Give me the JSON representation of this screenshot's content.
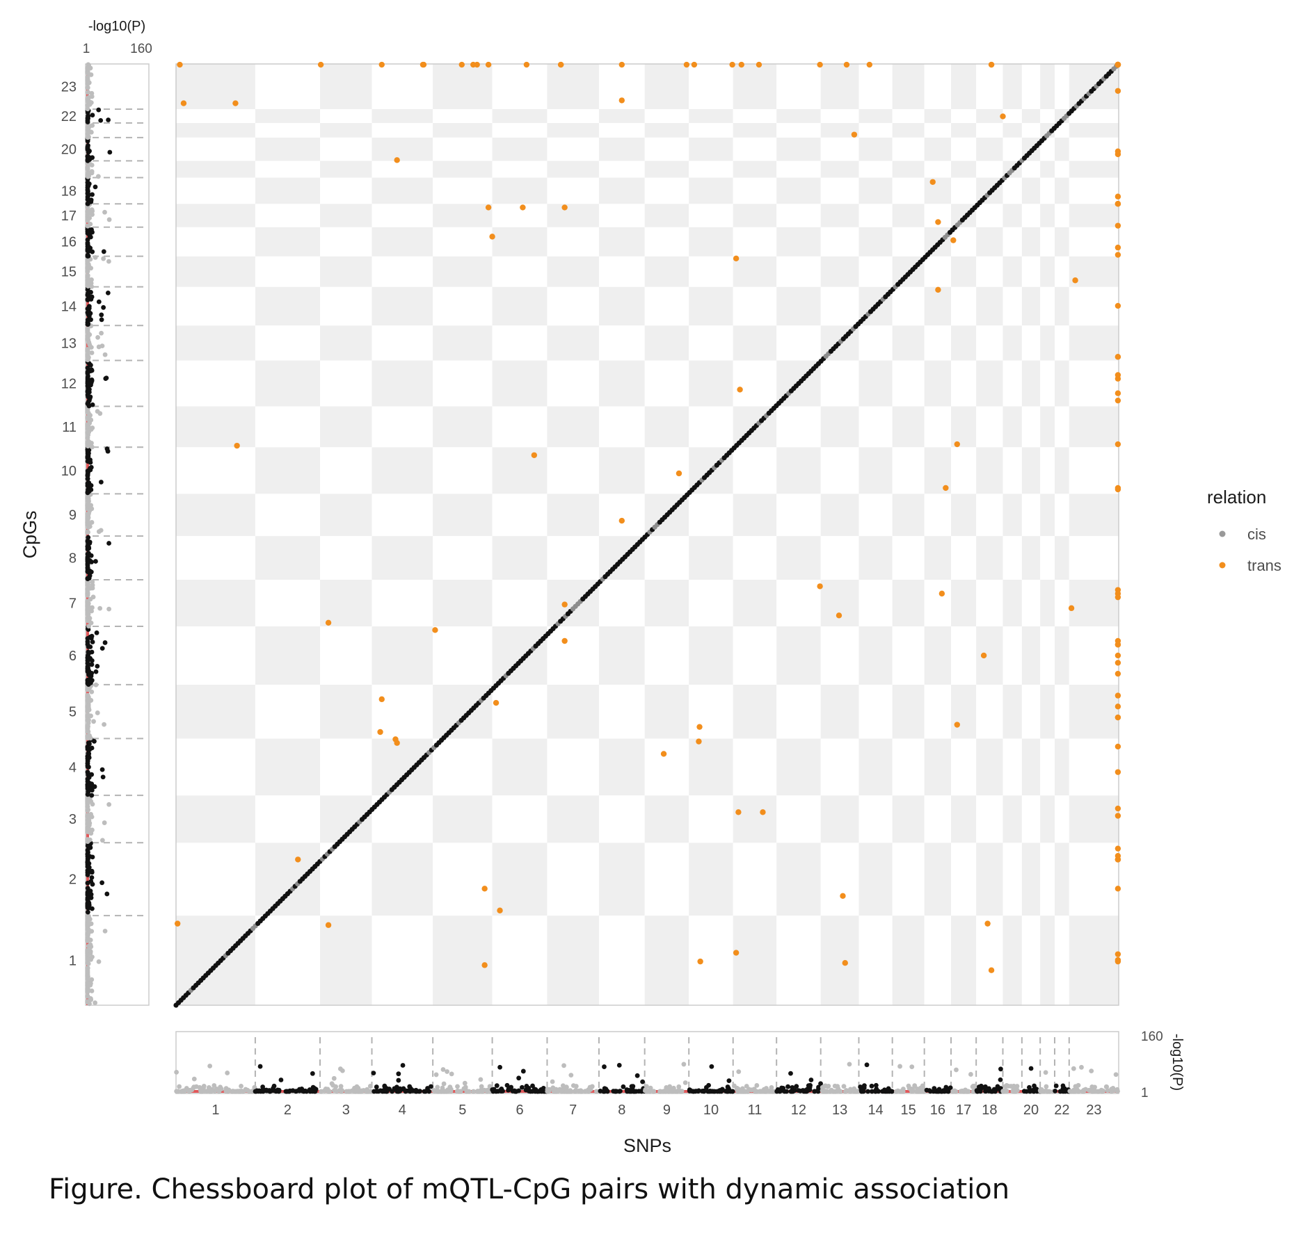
{
  "caption": "Figure. Chessboard plot of mQTL-CpG pairs with dynamic association",
  "chart_data": {
    "type": "scatter",
    "xlabel": "SNPs",
    "ylabel": "CpGs",
    "chromosomes": [
      "1",
      "2",
      "3",
      "4",
      "5",
      "6",
      "7",
      "8",
      "9",
      "10",
      "11",
      "12",
      "13",
      "14",
      "15",
      "16",
      "17",
      "18",
      "19",
      "20",
      "21",
      "22",
      "23"
    ],
    "x_tick_labels": [
      "1",
      "2",
      "3",
      "4",
      "5",
      "6",
      "7",
      "8",
      "9",
      "10",
      "11",
      "12",
      "13",
      "14",
      "15",
      "16",
      "17",
      "18",
      "20",
      "22",
      "23"
    ],
    "y_tick_labels": [
      "1",
      "2",
      "3",
      "4",
      "5",
      "6",
      "7",
      "8",
      "9",
      "10",
      "11",
      "12",
      "13",
      "14",
      "15",
      "16",
      "17",
      "18",
      "20",
      "22",
      "23"
    ],
    "snp_chrom_span": [
      1.04,
      0.85,
      0.68,
      0.8,
      0.78,
      0.72,
      0.68,
      0.6,
      0.58,
      0.58,
      0.57,
      0.58,
      0.5,
      0.44,
      0.42,
      0.35,
      0.33,
      0.35,
      0.25,
      0.24,
      0.19,
      0.19,
      0.65
    ],
    "cpg_chrom_span": [
      1.23,
      1.0,
      0.65,
      0.78,
      0.74,
      0.8,
      0.64,
      0.6,
      0.58,
      0.64,
      0.56,
      0.63,
      0.48,
      0.53,
      0.42,
      0.4,
      0.32,
      0.36,
      0.23,
      0.32,
      0.2,
      0.19,
      0.62
    ],
    "legend": {
      "title": "relation",
      "position": "right",
      "items": [
        {
          "label": "cis",
          "color": "#999999"
        },
        {
          "label": "trans",
          "color": "#f28e1c"
        }
      ]
    },
    "marginal_axis_label": "-log10(P)",
    "marginal_range": [
      1,
      160
    ],
    "marginal_ticks": [
      "1",
      "160"
    ],
    "significance_color": "#e15759",
    "checker_colors": [
      "#efefef",
      "#ffffff"
    ],
    "trans_pairs": [
      [
        0.05,
        19.95
      ],
      [
        0.02,
        1.12
      ],
      [
        0.1,
        12.38
      ],
      [
        0.78,
        12.38
      ],
      [
        0.8,
        7.68
      ],
      [
        1.6,
        2.0
      ],
      [
        1.9,
        16.65
      ],
      [
        2.0,
        5.25
      ],
      [
        2.0,
        1.1
      ],
      [
        2.7,
        16.55
      ],
      [
        2.7,
        4.2
      ],
      [
        2.68,
        3.75
      ],
      [
        2.9,
        11.6
      ],
      [
        2.88,
        3.65
      ],
      [
        2.9,
        3.6
      ],
      [
        3.25,
        19.65
      ],
      [
        3.24,
        19.5
      ],
      [
        3.4,
        5.15
      ],
      [
        3.75,
        17.65
      ],
      [
        3.9,
        18.55
      ],
      [
        3.95,
        18.6
      ],
      [
        4.1,
        15.05
      ],
      [
        4.15,
        10.55
      ],
      [
        4.2,
        4.15
      ],
      [
        4.25,
        1.3
      ],
      [
        4.05,
        1.6
      ],
      [
        4.1,
        10.95
      ],
      [
        4.05,
        0.55
      ],
      [
        4.7,
        7.55
      ],
      [
        4.55,
        10.95
      ],
      [
        4.6,
        18.8
      ],
      [
        5.05,
        18.65
      ],
      [
        5.05,
        18.55
      ],
      [
        5.1,
        10.95
      ],
      [
        5.1,
        5.5
      ],
      [
        5.1,
        5.0
      ],
      [
        5.85,
        17.2
      ],
      [
        5.85,
        12.42
      ],
      [
        5.85,
        6.65
      ],
      [
        6.4,
        3.45
      ],
      [
        6.6,
        7.3
      ],
      [
        6.7,
        18.62
      ],
      [
        6.8,
        15.05
      ],
      [
        6.87,
        3.82
      ],
      [
        6.86,
        3.62
      ],
      [
        6.88,
        0.6
      ],
      [
        7.3,
        14.15
      ],
      [
        7.42,
        14.1
      ],
      [
        7.35,
        10.25
      ],
      [
        7.4,
        8.45
      ],
      [
        7.38,
        2.65
      ],
      [
        7.35,
        0.72
      ],
      [
        7.65,
        15.05
      ],
      [
        7.7,
        2.65
      ],
      [
        8.45,
        15.45
      ],
      [
        8.45,
        5.75
      ],
      [
        8.7,
        5.35
      ],
      [
        8.8,
        17.7
      ],
      [
        8.9,
        11.95
      ],
      [
        9.1,
        15.05
      ],
      [
        8.75,
        1.5
      ],
      [
        8.78,
        0.58
      ],
      [
        9.93,
        11.3
      ],
      [
        10.0,
        10.75
      ],
      [
        10.2,
        10.5
      ],
      [
        10.05,
        5.65
      ],
      [
        10.1,
        7.1
      ],
      [
        10.25,
        7.7
      ],
      [
        10.25,
        3.85
      ],
      [
        10.0,
        9.82
      ],
      [
        10.7,
        19.45
      ],
      [
        10.7,
        15.05
      ],
      [
        10.85,
        12.2
      ],
      [
        10.6,
        4.8
      ],
      [
        10.65,
        1.12
      ],
      [
        10.7,
        0.48
      ],
      [
        11.8,
        9.95
      ],
      [
        11.75,
        5.45
      ],
      [
        12.9,
        19.95
      ],
      [
        12.97,
        20.05
      ],
      [
        12.87,
        17.25
      ],
      [
        12.95,
        8.4
      ],
      [
        14.15,
        10.4
      ],
      [
        14.2,
        11.0
      ],
      [
        14.2,
        4.7
      ],
      [
        14.25,
        5.0
      ],
      [
        14.2,
        4.95
      ],
      [
        14.3,
        4.25
      ],
      [
        14.4,
        4.1
      ],
      [
        14.15,
        5.7
      ],
      [
        14.2,
        2.7
      ],
      [
        14.4,
        16.1
      ],
      [
        14.9,
        17.75
      ],
      [
        14.92,
        13.3
      ],
      [
        14.93,
        12.55
      ],
      [
        14.92,
        11.1
      ],
      [
        14.95,
        10.7
      ],
      [
        14.92,
        3.95
      ],
      [
        14.93,
        2.15
      ],
      [
        14.93,
        0.6
      ],
      [
        15.5,
        21.3
      ],
      [
        15.55,
        17.5
      ],
      [
        15.35,
        9.6
      ],
      [
        15.45,
        7.08
      ],
      [
        15.35,
        3.55
      ],
      [
        15.4,
        2.6
      ],
      [
        15.88,
        19.5
      ],
      [
        15.9,
        13.7
      ],
      [
        15.9,
        11.72
      ],
      [
        15.95,
        11.68
      ],
      [
        15.95,
        11.0
      ],
      [
        15.8,
        10.3
      ],
      [
        15.8,
        8.9
      ],
      [
        15.8,
        8.6
      ],
      [
        15.85,
        7.7
      ],
      [
        15.85,
        7.1
      ],
      [
        15.85,
        4.8
      ],
      [
        15.8,
        4.55
      ],
      [
        15.85,
        3.2
      ],
      [
        15.8,
        2.0
      ],
      [
        15.8,
        0.7
      ],
      [
        15.82,
        0.62
      ],
      [
        16.0,
        20.1
      ],
      [
        16.05,
        19.1
      ],
      [
        16.1,
        18.9
      ],
      [
        16.08,
        16.3
      ],
      [
        16.05,
        15.7
      ],
      [
        16.1,
        15.65
      ],
      [
        16.05,
        5.65
      ],
      [
        16.07,
        3.95
      ],
      [
        16.0,
        2.0
      ],
      [
        16.05,
        2.0
      ],
      [
        16.3,
        19.8
      ],
      [
        16.5,
        19.4
      ],
      [
        16.1,
        19.55
      ],
      [
        16.8,
        18.75
      ],
      [
        16.85,
        17.6
      ],
      [
        16.8,
        11.0
      ],
      [
        16.8,
        8.3
      ],
      [
        16.85,
        4.95
      ],
      [
        16.88,
        2.05
      ],
      [
        16.3,
        21.85
      ],
      [
        16.35,
        21.2
      ],
      [
        16.9,
        16.85
      ],
      [
        16.85,
        19.4
      ],
      [
        16.5,
        5.6
      ],
      [
        16.95,
        8.9
      ],
      [
        17.2,
        16.95
      ],
      [
        16.73,
        13.5
      ],
      [
        16.74,
        18.0
      ],
      [
        16.83,
        8.65
      ],
      [
        16.8,
        1.6
      ],
      [
        16.8,
        21.9
      ],
      [
        16.9,
        18.8
      ]
    ]
  }
}
